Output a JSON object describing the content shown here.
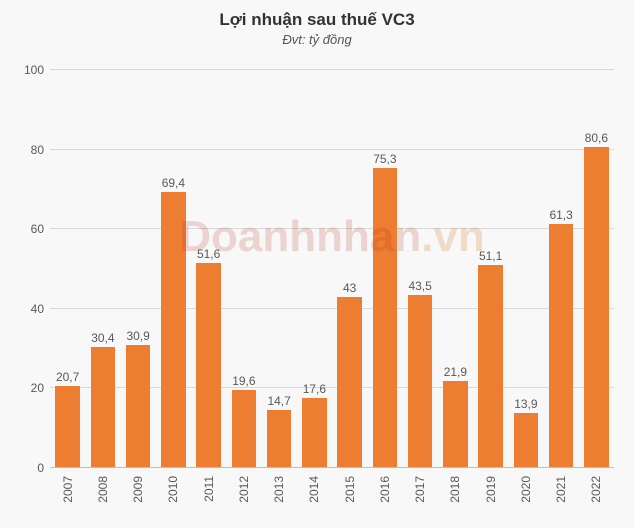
{
  "chart": {
    "type": "bar",
    "title": "Lợi nhuận sau thuế VC3",
    "title_fontsize": 17,
    "subtitle": "Đvt: tỷ đồng",
    "subtitle_fontsize": 13,
    "background_color": "#f8f8f8",
    "bar_color": "#ed7d31",
    "grid_color": "#d9d9d9",
    "text_color": "#595959",
    "bar_width_ratio": 0.7,
    "ylim": [
      0,
      100
    ],
    "ytick_step": 20,
    "yticks": [
      0,
      20,
      40,
      60,
      80,
      100
    ],
    "categories": [
      "2007",
      "2008",
      "2009",
      "2010",
      "2011",
      "2012",
      "2013",
      "2014",
      "2015",
      "2016",
      "2017",
      "2018",
      "2019",
      "2020",
      "2021",
      "2022"
    ],
    "values": [
      20.7,
      30.4,
      30.9,
      69.4,
      51.6,
      19.6,
      14.7,
      17.6,
      43,
      75.3,
      43.5,
      21.9,
      51.1,
      13.9,
      61.3,
      80.6
    ],
    "value_labels": [
      "20,7",
      "30,4",
      "30,9",
      "69,4",
      "51,6",
      "19,6",
      "14,7",
      "17,6",
      "43",
      "75,3",
      "43,5",
      "21,9",
      "51,1",
      "13,9",
      "61,3",
      "80,6"
    ],
    "label_fontsize": 12,
    "x_rotation_deg": -90
  },
  "watermark": {
    "text_main": "Doanhnhan",
    "text_suffix": ".vn",
    "color_main": "rgba(180,50,30,0.18)",
    "color_suffix": "rgba(214,120,33,0.22)",
    "fontsize": 44
  }
}
